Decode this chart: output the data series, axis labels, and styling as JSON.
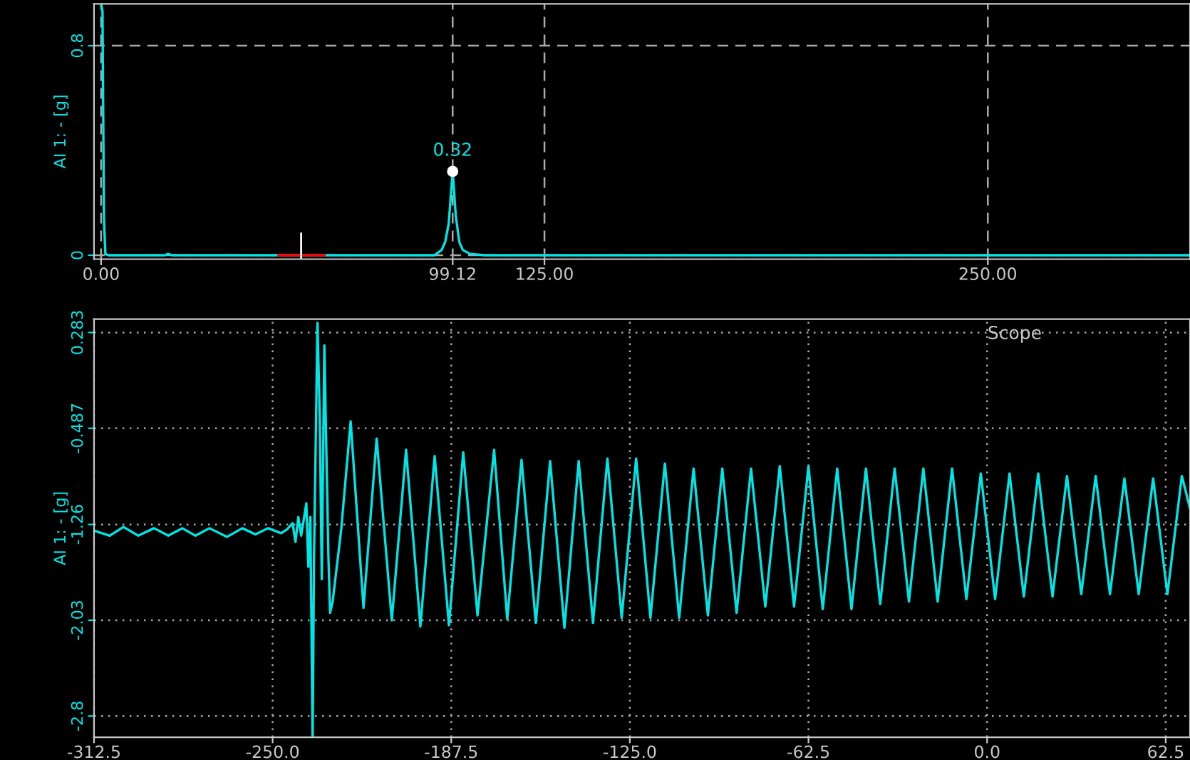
{
  "chart_data": [
    {
      "type": "line",
      "ylabel": "AI 1: - [g]",
      "xlim": [
        -2,
        307
      ],
      "ylim": [
        -0.015,
        0.96
      ],
      "xticks": [
        {
          "value": 0,
          "label": "0.00"
        },
        {
          "value": 99.12,
          "label": "99.12"
        },
        {
          "value": 125,
          "label": "125.00"
        },
        {
          "value": 250,
          "label": "250.00"
        }
      ],
      "yticks": [
        0,
        0.8
      ],
      "grid": true,
      "series": [
        {
          "color": "#00e5e5",
          "x": [
            0,
            0.4,
            0.8,
            1.2,
            2,
            18,
            18.9,
            20,
            60,
            94,
            96,
            97,
            98,
            99.12,
            100,
            101,
            102,
            104,
            108,
            307
          ],
          "values": [
            0.96,
            0.93,
            0.14,
            0.005,
            0,
            0,
            0.005,
            0,
            0,
            0,
            0.02,
            0.05,
            0.12,
            0.32,
            0.15,
            0.05,
            0.02,
            0.005,
            0,
            0
          ]
        },
        {
          "type": "scatter",
          "color": "#ffffff",
          "marker": "circle",
          "x": [
            99.12
          ],
          "values": [
            0.32
          ]
        },
        {
          "color": "#ff0000",
          "x": [
            50,
            63
          ],
          "values": [
            0,
            0
          ]
        }
      ],
      "annotations": [
        {
          "text": "0.32",
          "x": 99.12,
          "y": 0.32
        }
      ],
      "ref_lines": [
        {
          "axis": "x",
          "value": 56.4,
          "color": "#ffffff"
        }
      ]
    },
    {
      "type": "line",
      "ylabel": "AI 1: - [g]",
      "xlim": [
        -312.5,
        71
      ],
      "ylim": [
        -2.97,
        0.39
      ],
      "xticks": [
        -312.5,
        {
          "value": -250,
          "label": "-250.0"
        },
        -187.5,
        {
          "value": -125,
          "label": "-125.0"
        },
        -62.5,
        {
          "value": 0,
          "label": "0.0"
        },
        62.5
      ],
      "yticks": [
        0.283,
        -0.487,
        -1.26,
        -2.03,
        -2.8
      ],
      "grid": true,
      "annotations": [
        "Scope"
      ],
      "series": [
        {
          "color": "#00e5e5",
          "x": [
            -312.5,
            -307,
            -302.2,
            -297,
            -291.5,
            -286.5,
            -281.6,
            -277,
            -272.1,
            -266,
            -260.6,
            -256,
            -251.6,
            -247,
            -245,
            -243,
            -242,
            -241,
            -240,
            -238.2,
            -237.5,
            -236.8,
            -236.0,
            -235.5,
            -234.3,
            -233.5,
            -232.8,
            -231.9,
            -230.5,
            -229.9,
            -229.0,
            -226,
            -222.7,
            -218.2,
            -213.6,
            -208.3,
            -203.3,
            -198.3,
            -193.3,
            -188.3,
            -183.3,
            -178.3,
            -172.5,
            -167.9,
            -162.9,
            -157.9,
            -152.9,
            -147.9,
            -142.9,
            -137.9,
            -132.85,
            -127.85,
            -122.8,
            -117.8,
            -112.75,
            -107.75,
            -102.7,
            -97.7,
            -92.65,
            -87.65,
            -82.6,
            -77.6,
            -72.55,
            -67.55,
            -62.5,
            -57.5,
            -52.45,
            -47.45,
            -42.4,
            -37.4,
            -32.35,
            -27.35,
            -22.3,
            -17.3,
            -12.25,
            -7.25,
            -2.2,
            2.8,
            7.85,
            12.85,
            17.9,
            22.9,
            27.95,
            32.95,
            38.0,
            43.0,
            48.05,
            53.05,
            58.1,
            63.1,
            68.15,
            71
          ],
          "values": [
            -1.31,
            -1.35,
            -1.28,
            -1.35,
            -1.29,
            -1.35,
            -1.29,
            -1.35,
            -1.29,
            -1.36,
            -1.29,
            -1.34,
            -1.29,
            -1.33,
            -1.3,
            -1.25,
            -1.4,
            -1.2,
            -1.35,
            -1.09,
            -1.6,
            -1.2,
            -2.97,
            -1.5,
            0.36,
            -0.4,
            -1.7,
            0.18,
            -1.5,
            -1.97,
            -1.88,
            -1.3,
            -0.43,
            -1.93,
            -0.57,
            -2.03,
            -0.66,
            -2.08,
            -0.71,
            -2.07,
            -0.68,
            -1.99,
            -0.66,
            -2.02,
            -0.74,
            -2.05,
            -0.75,
            -2.09,
            -0.75,
            -2.05,
            -0.73,
            -2.01,
            -0.73,
            -2.01,
            -0.77,
            -2.01,
            -0.81,
            -1.99,
            -0.81,
            -1.97,
            -0.81,
            -1.92,
            -0.79,
            -1.92,
            -0.79,
            -1.94,
            -0.81,
            -1.94,
            -0.81,
            -1.9,
            -0.81,
            -1.88,
            -0.81,
            -1.88,
            -0.81,
            -1.86,
            -0.85,
            -1.86,
            -0.85,
            -1.84,
            -0.85,
            -1.84,
            -0.87,
            -1.82,
            -0.87,
            -1.82,
            -0.89,
            -1.82,
            -0.89,
            -1.82,
            -0.87,
            -1.13
          ]
        }
      ]
    }
  ]
}
